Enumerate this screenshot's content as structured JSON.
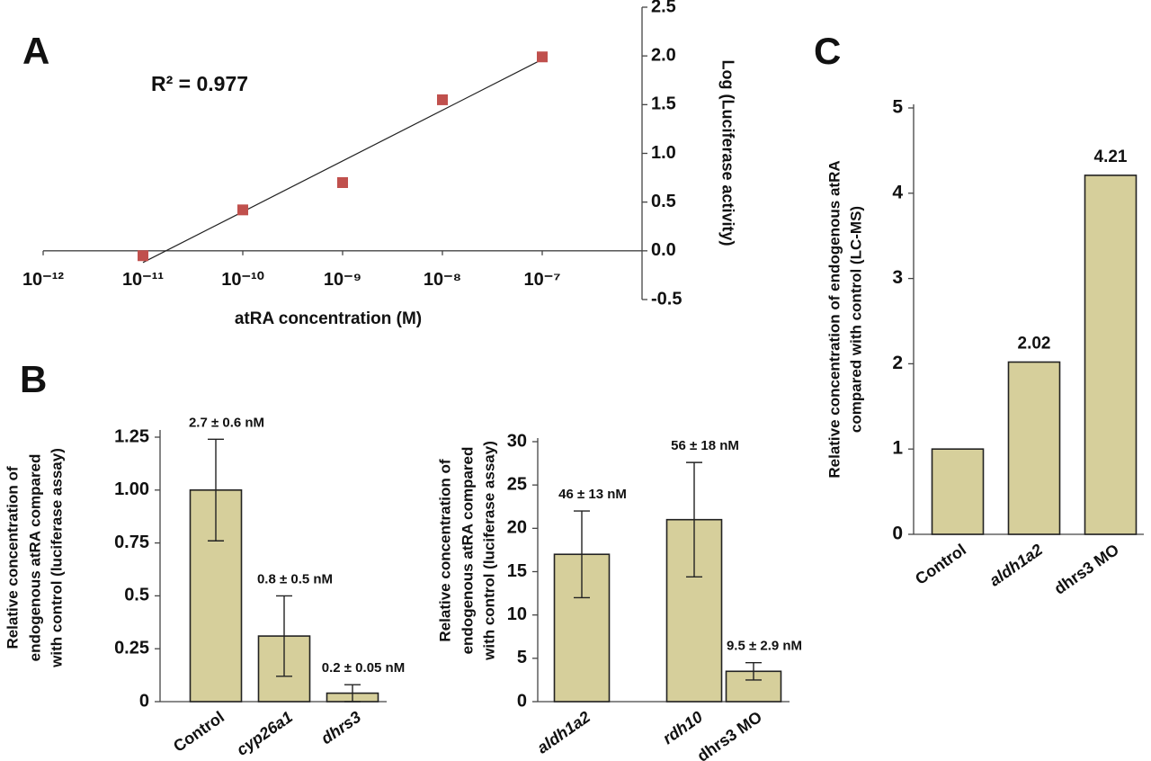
{
  "chart_data": [
    {
      "type": "scatter",
      "panel_label": "A",
      "annotation": "R² = 0.977",
      "xlabel": "atRA concentration (M)",
      "ylabel": "Log (Luciferase activity)",
      "x": [
        1e-11,
        1e-10,
        1e-09,
        1e-08,
        1e-07
      ],
      "values": [
        -0.05,
        0.42,
        0.7,
        1.55,
        1.99
      ],
      "color": "#c0504d",
      "trendline": "linear",
      "xscale": "log",
      "xlim": [
        1e-12,
        1e-06
      ],
      "ylim": [
        -0.5,
        2.5
      ],
      "xticks": [
        {
          "value": 1e-12,
          "label": "10⁻¹²"
        },
        {
          "value": 1e-11,
          "label": "10⁻¹¹"
        },
        {
          "value": 1e-10,
          "label": "10⁻¹⁰"
        },
        {
          "value": 1e-09,
          "label": "10⁻⁹"
        },
        {
          "value": 1e-08,
          "label": "10⁻⁸"
        },
        {
          "value": 1e-07,
          "label": "10⁻⁷"
        }
      ],
      "yticks": [
        -0.5,
        {
          "value": 0,
          "label": "0.0"
        },
        0.5,
        {
          "value": 1,
          "label": "1.0"
        },
        1.5,
        {
          "value": 2,
          "label": "2.0"
        },
        2.5
      ]
    },
    {
      "type": "bar",
      "panel_label": "B",
      "ylabel": [
        "Relative concentration of",
        "endogenous  atRA compared",
        "with control (luciferase assay)"
      ],
      "categories": [
        "Control",
        "cyp26a1",
        "dhrs3"
      ],
      "values": [
        1.0,
        0.31,
        0.04
      ],
      "errors": [
        0.24,
        0.19,
        0.04
      ],
      "annotations": [
        "2.7 ± 0.6 nM",
        "0.8 ± 0.5 nM",
        "0.2 ± 0.05 nM"
      ],
      "color": "#d6cf9b",
      "ylim": [
        0,
        1.25
      ],
      "yticks": [
        0,
        0.25,
        0.5,
        0.75,
        {
          "value": 1,
          "label": "1.00"
        },
        1.25
      ]
    },
    {
      "type": "bar",
      "ylabel": [
        "Relative concentration of",
        "endogenous  atRA compared",
        "with control (luciferase assay)"
      ],
      "categories": [
        "aldh1a2",
        "rdh10",
        "dhrs3 MO"
      ],
      "values": [
        17,
        21,
        3.5
      ],
      "errors": [
        5,
        6.6,
        1.0
      ],
      "annotations": [
        "46 ± 13 nM",
        "56 ± 18 nM",
        "9.5 ± 2.9 nM"
      ],
      "color": "#d6cf9b",
      "ylim": [
        0,
        30
      ],
      "yticks": [
        0,
        5,
        10,
        15,
        20,
        25,
        30
      ]
    },
    {
      "type": "bar",
      "panel_label": "C",
      "ylabel": [
        "Relative concentration of endogenous  atRA",
        "compared with control (LC-MS)"
      ],
      "categories": [
        "Control",
        "aldh1a2",
        "dhrs3 MO"
      ],
      "values": [
        1,
        2.02,
        4.21
      ],
      "value_labels": [
        null,
        "2.02",
        "4.21"
      ],
      "color": "#d6cf9b",
      "ylim": [
        0,
        5
      ],
      "yticks": [
        0,
        1,
        2,
        3,
        4,
        5
      ]
    }
  ]
}
